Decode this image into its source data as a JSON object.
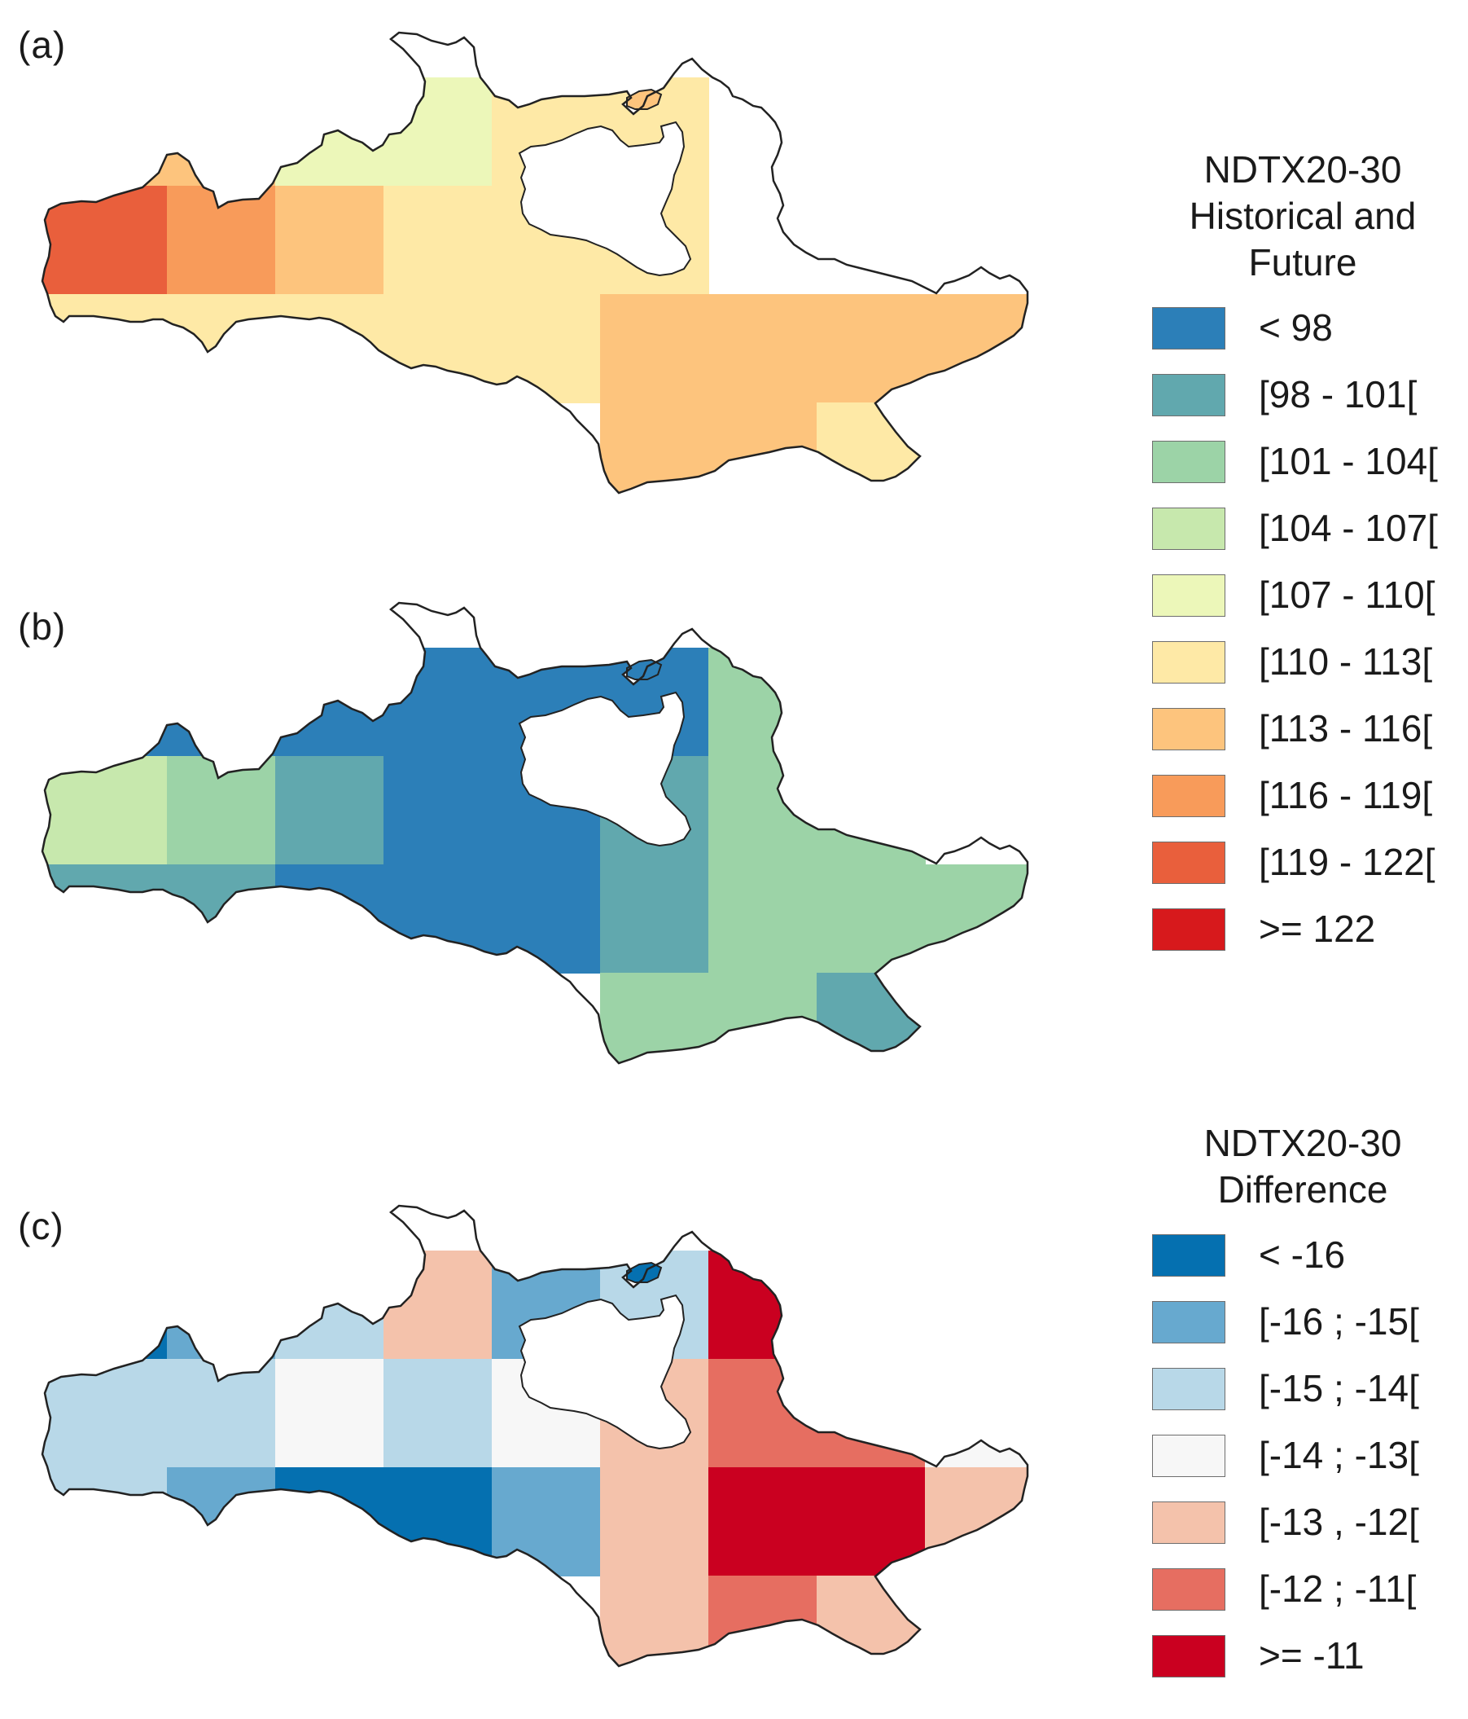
{
  "panels": [
    {
      "label": "(a)",
      "cells": [
        {
          "col": 0,
          "row": 0,
          "color": "#fdc47d"
        },
        {
          "col": 1,
          "row": 0,
          "color": "#fdc47d"
        },
        {
          "col": 2,
          "row": 0,
          "color": "#ecf7b9"
        },
        {
          "col": 3,
          "row": 0,
          "color": "#ecf7b9"
        },
        {
          "col": 4,
          "row": 0,
          "color": "#fee9a6"
        },
        {
          "col": 5,
          "row": 0,
          "color": "#fee9a6"
        },
        {
          "col": 0,
          "row": 1,
          "color": "#e95f3c"
        },
        {
          "col": 1,
          "row": 1,
          "color": "#f89b5a"
        },
        {
          "col": 2,
          "row": 1,
          "color": "#fdc47d"
        },
        {
          "col": 3,
          "row": 1,
          "color": "#fee9a6"
        },
        {
          "col": 4,
          "row": 1,
          "color": "#fee9a6"
        },
        {
          "col": 5,
          "row": 1,
          "color": "#fee9a6"
        },
        {
          "col": 0,
          "row": 2,
          "color": "#fee9a6"
        },
        {
          "col": 1,
          "row": 2,
          "color": "#fee9a6"
        },
        {
          "col": 2,
          "row": 2,
          "color": "#fee9a6"
        },
        {
          "col": 3,
          "row": 2,
          "color": "#fee9a6"
        },
        {
          "col": 4,
          "row": 2,
          "color": "#fee9a6"
        },
        {
          "col": 5,
          "row": 2,
          "color": "#fdc47d"
        },
        {
          "col": 6,
          "row": 2,
          "color": "#fdc47d"
        },
        {
          "col": 7,
          "row": 2,
          "color": "#fdc47d"
        },
        {
          "col": 8,
          "row": 2,
          "color": "#fdc47d"
        },
        {
          "col": 5,
          "row": 3,
          "color": "#fdc47d"
        },
        {
          "col": 6,
          "row": 3,
          "color": "#fdc47d"
        },
        {
          "col": 7,
          "row": 3,
          "color": "#fee9a6"
        }
      ]
    },
    {
      "label": "(b)",
      "cells": [
        {
          "col": 0,
          "row": 0,
          "color": "#2c7fb8"
        },
        {
          "col": 1,
          "row": 0,
          "color": "#2c7fb8"
        },
        {
          "col": 2,
          "row": 0,
          "color": "#2c7fb8"
        },
        {
          "col": 3,
          "row": 0,
          "color": "#2c7fb8"
        },
        {
          "col": 4,
          "row": 0,
          "color": "#2c7fb8"
        },
        {
          "col": 5,
          "row": 0,
          "color": "#2c7fb8"
        },
        {
          "col": 6,
          "row": 0,
          "color": "#9cd3a7"
        },
        {
          "col": 7,
          "row": 0,
          "color": "#9cd3a7"
        },
        {
          "col": 0,
          "row": 1,
          "color": "#c7e8ad"
        },
        {
          "col": 1,
          "row": 1,
          "color": "#9cd3a7"
        },
        {
          "col": 2,
          "row": 1,
          "color": "#61a8ae"
        },
        {
          "col": 3,
          "row": 1,
          "color": "#2c7fb8"
        },
        {
          "col": 4,
          "row": 1,
          "color": "#2c7fb8"
        },
        {
          "col": 5,
          "row": 1,
          "color": "#61a8ae"
        },
        {
          "col": 6,
          "row": 1,
          "color": "#9cd3a7"
        },
        {
          "col": 7,
          "row": 1,
          "color": "#9cd3a7"
        },
        {
          "col": 0,
          "row": 2,
          "color": "#61a8ae"
        },
        {
          "col": 1,
          "row": 2,
          "color": "#61a8ae"
        },
        {
          "col": 2,
          "row": 2,
          "color": "#2c7fb8"
        },
        {
          "col": 3,
          "row": 2,
          "color": "#2c7fb8"
        },
        {
          "col": 4,
          "row": 2,
          "color": "#2c7fb8"
        },
        {
          "col": 5,
          "row": 2,
          "color": "#61a8ae"
        },
        {
          "col": 6,
          "row": 2,
          "color": "#9cd3a7"
        },
        {
          "col": 7,
          "row": 2,
          "color": "#9cd3a7"
        },
        {
          "col": 8,
          "row": 2,
          "color": "#9cd3a7"
        },
        {
          "col": 5,
          "row": 3,
          "color": "#9cd3a7"
        },
        {
          "col": 6,
          "row": 3,
          "color": "#9cd3a7"
        },
        {
          "col": 7,
          "row": 3,
          "color": "#61a8ae"
        }
      ]
    },
    {
      "label": "(c)",
      "cells": [
        {
          "col": 0,
          "row": 0,
          "color": "#0570b0"
        },
        {
          "col": 1,
          "row": 0,
          "color": "#67a9cf"
        },
        {
          "col": 2,
          "row": 0,
          "color": "#b8d8e8"
        },
        {
          "col": 3,
          "row": 0,
          "color": "#f4c2ab"
        },
        {
          "col": 4,
          "row": 0,
          "color": "#67a9cf"
        },
        {
          "col": 5,
          "row": 0,
          "color": "#b8d8e8"
        },
        {
          "col": 6,
          "row": 0,
          "color": "#ca0020"
        },
        {
          "col": 7,
          "row": 0,
          "color": "#ca0020"
        },
        {
          "col": 0,
          "row": 1,
          "color": "#b8d8e8"
        },
        {
          "col": 1,
          "row": 1,
          "color": "#b8d8e8"
        },
        {
          "col": 2,
          "row": 1,
          "color": "#f7f7f7"
        },
        {
          "col": 3,
          "row": 1,
          "color": "#b8d8e8"
        },
        {
          "col": 4,
          "row": 1,
          "color": "#f7f7f7"
        },
        {
          "col": 5,
          "row": 1,
          "color": "#f4c2ab"
        },
        {
          "col": 6,
          "row": 1,
          "color": "#e66e61"
        },
        {
          "col": 7,
          "row": 1,
          "color": "#e66e61"
        },
        {
          "col": 8,
          "row": 1,
          "color": "#f7f7f7"
        },
        {
          "col": 0,
          "row": 2,
          "color": "#b8d8e8"
        },
        {
          "col": 1,
          "row": 2,
          "color": "#67a9cf"
        },
        {
          "col": 2,
          "row": 2,
          "color": "#0570b0"
        },
        {
          "col": 3,
          "row": 2,
          "color": "#0570b0"
        },
        {
          "col": 4,
          "row": 2,
          "color": "#67a9cf"
        },
        {
          "col": 5,
          "row": 2,
          "color": "#f4c2ab"
        },
        {
          "col": 6,
          "row": 2,
          "color": "#ca0020"
        },
        {
          "col": 7,
          "row": 2,
          "color": "#ca0020"
        },
        {
          "col": 8,
          "row": 2,
          "color": "#f4c2ab"
        },
        {
          "col": 5,
          "row": 3,
          "color": "#f4c2ab"
        },
        {
          "col": 6,
          "row": 3,
          "color": "#e66e61"
        },
        {
          "col": 7,
          "row": 3,
          "color": "#f4c2ab"
        }
      ]
    }
  ],
  "legends": [
    {
      "title": [
        "NDTX20-30",
        "Historical and",
        "Future"
      ],
      "items": [
        {
          "label": "< 98",
          "color": "#2c7fb8"
        },
        {
          "label": "[98 - 101[",
          "color": "#61a8ae"
        },
        {
          "label": "[101 - 104[",
          "color": "#9cd3a7"
        },
        {
          "label": "[104 - 107[",
          "color": "#c7e8ad"
        },
        {
          "label": "[107 - 110[",
          "color": "#ecf7b9"
        },
        {
          "label": "[110 - 113[",
          "color": "#fee9a6"
        },
        {
          "label": "[113 - 116[",
          "color": "#fdc47d"
        },
        {
          "label": "[116 - 119[",
          "color": "#f89b5a"
        },
        {
          "label": "[119 - 122[",
          "color": "#e95f3c"
        },
        {
          "label": ">= 122",
          "color": "#d7191c"
        }
      ]
    },
    {
      "title": [
        "NDTX20-30",
        "Difference"
      ],
      "items": [
        {
          "label": "< -16",
          "color": "#0570b0"
        },
        {
          "label": "[-16 ; -15[",
          "color": "#67a9cf"
        },
        {
          "label": "[-15 ; -14[",
          "color": "#b8d8e8"
        },
        {
          "label": "[-14 ; -13[",
          "color": "#f7f7f7"
        },
        {
          "label": "[-13 , -12[",
          "color": "#f4c2ab"
        },
        {
          "label": "[-12 ; -11[",
          "color": "#e66e61"
        },
        {
          "label": ">= -11",
          "color": "#ca0020"
        }
      ]
    }
  ]
}
